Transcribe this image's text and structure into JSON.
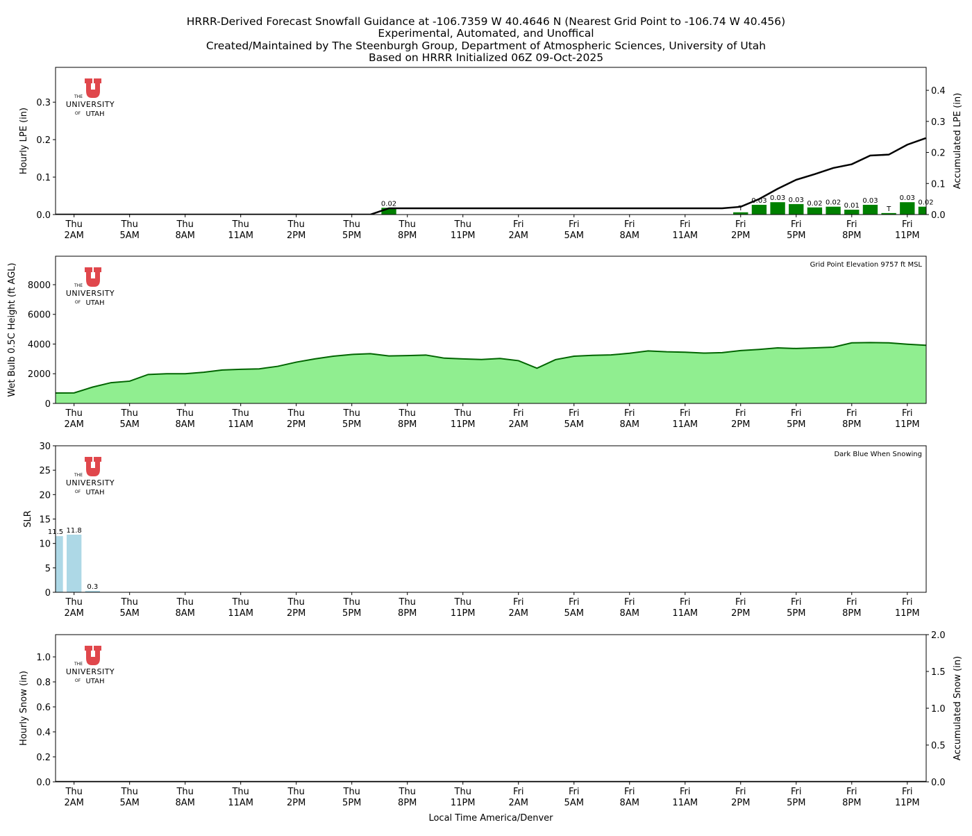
{
  "title_lines": [
    "HRRR-Derived Forecast Snowfall Guidance at -106.7359 W 40.4646 N (Nearest Grid Point to -106.74 W 40.456)",
    "Experimental, Automated, and Unoffical",
    "Created/Maintained by The Steenburgh Group, Department of Atmospheric Sciences, University of Utah",
    "Based on HRRR Initialized 06Z 09-Oct-2025"
  ],
  "logo": {
    "the": "THE",
    "university": "UNIVERSITY",
    "of": "OF",
    "utah": "UTAH"
  },
  "colors": {
    "lpe_bar": "#008000",
    "accum_line": "#000000",
    "wb_fill": "#90ee90",
    "wb_line": "#006400",
    "slr_bar": "#add8e6",
    "logo_red": "#e0474c"
  },
  "chart_data": [
    {
      "type": "bar",
      "name": "hourly-lpe",
      "x_unit": "hours after Thu 2AM local",
      "xlim": [
        -1,
        46
      ],
      "x_ticks": [
        0,
        3,
        6,
        9,
        12,
        15,
        18,
        21,
        24,
        27,
        30,
        33,
        36,
        39,
        42,
        45
      ],
      "x_tick_labels": [
        [
          "Thu",
          "2AM"
        ],
        [
          "Thu",
          "5AM"
        ],
        [
          "Thu",
          "8AM"
        ],
        [
          "Thu",
          "11AM"
        ],
        [
          "Thu",
          "2PM"
        ],
        [
          "Thu",
          "5PM"
        ],
        [
          "Thu",
          "8PM"
        ],
        [
          "Thu",
          "11PM"
        ],
        [
          "Fri",
          "2AM"
        ],
        [
          "Fri",
          "5AM"
        ],
        [
          "Fri",
          "8AM"
        ],
        [
          "Fri",
          "11AM"
        ],
        [
          "Fri",
          "2PM"
        ],
        [
          "Fri",
          "5PM"
        ],
        [
          "Fri",
          "8PM"
        ],
        [
          "Fri",
          "11PM"
        ]
      ],
      "ylabel": "Hourly LPE (in)",
      "ylim": [
        0,
        0.393
      ],
      "y_ticks": [
        0,
        0.1,
        0.2,
        0.3
      ],
      "y_tick_labels": [
        "0.0",
        "0.1",
        "0.2",
        "0.3"
      ],
      "bars": {
        "x": [
          17,
          36,
          37,
          38,
          39,
          40,
          41,
          42,
          43,
          44,
          45,
          46
        ],
        "values": [
          0.018,
          0.006,
          0.026,
          0.033,
          0.028,
          0.019,
          0.021,
          0.013,
          0.026,
          0.004,
          0.033,
          0.021
        ],
        "labels": [
          "0.02",
          "T",
          "0.03",
          "0.03",
          "0.03",
          "0.02",
          "0.02",
          "0.01",
          "0.03",
          "T",
          "0.03",
          "0.02"
        ]
      },
      "secondary": {
        "type": "line",
        "ylabel": "Accumulated LPE (in)",
        "ylim": [
          0,
          0.474
        ],
        "y_ticks": [
          0,
          0.1,
          0.2,
          0.3,
          0.4
        ],
        "y_tick_labels": [
          "0.0",
          "0.1",
          "0.2",
          "0.3",
          "0.4"
        ],
        "x": [
          -1,
          0,
          1,
          2,
          3,
          4,
          5,
          6,
          7,
          8,
          9,
          10,
          11,
          12,
          13,
          14,
          15,
          16,
          17,
          18,
          19,
          20,
          21,
          22,
          23,
          24,
          25,
          26,
          27,
          28,
          29,
          30,
          31,
          32,
          33,
          34,
          35,
          36,
          37,
          38,
          39,
          40,
          41,
          42,
          43,
          44,
          45,
          46
        ],
        "values": [
          0,
          0,
          0,
          0,
          0,
          0,
          0,
          0,
          0,
          0,
          0,
          0,
          0,
          0,
          0,
          0,
          0,
          0,
          0.02,
          0.02,
          0.02,
          0.02,
          0.02,
          0.02,
          0.02,
          0.02,
          0.02,
          0.02,
          0.02,
          0.02,
          0.02,
          0.02,
          0.02,
          0.02,
          0.02,
          0.02,
          0.02,
          0.025,
          0.05,
          0.083,
          0.112,
          0.13,
          0.15,
          0.162,
          0.19,
          0.193,
          0.225,
          0.246
        ]
      }
    },
    {
      "type": "area",
      "name": "wet-bulb-height",
      "xlim": [
        -1,
        46
      ],
      "ylabel": "Wet Bulb 0.5C Height (ft AGL)",
      "ylim": [
        0,
        9918
      ],
      "y_ticks": [
        0,
        2000,
        4000,
        6000,
        8000
      ],
      "y_tick_labels": [
        "0",
        "2000",
        "4000",
        "6000",
        "8000"
      ],
      "annotation": "Grid Point Elevation 9757 ft MSL",
      "x": [
        -1,
        0,
        1,
        2,
        3,
        4,
        5,
        6,
        7,
        8,
        9,
        10,
        11,
        12,
        13,
        14,
        15,
        16,
        17,
        18,
        19,
        20,
        21,
        22,
        23,
        24,
        25,
        26,
        27,
        28,
        29,
        30,
        31,
        32,
        33,
        34,
        35,
        36,
        37,
        38,
        39,
        40,
        41,
        42,
        43,
        44,
        45,
        46
      ],
      "values": [
        700,
        710,
        1100,
        1400,
        1500,
        1950,
        2000,
        2000,
        2100,
        2250,
        2300,
        2330,
        2500,
        2780,
        3000,
        3180,
        3300,
        3350,
        3200,
        3220,
        3260,
        3050,
        3000,
        2960,
        3030,
        2880,
        2370,
        2950,
        3180,
        3240,
        3270,
        3380,
        3540,
        3480,
        3450,
        3390,
        3420,
        3560,
        3640,
        3740,
        3700,
        3740,
        3790,
        4080,
        4100,
        4080,
        3990,
        3920
      ]
    },
    {
      "type": "bar",
      "name": "slr",
      "xlim": [
        -1,
        46
      ],
      "ylabel": "SLR",
      "ylim": [
        0,
        30
      ],
      "y_ticks": [
        0,
        5,
        10,
        15,
        20,
        25,
        30
      ],
      "y_tick_labels": [
        "0",
        "5",
        "10",
        "15",
        "20",
        "25",
        "30"
      ],
      "annotation": "Dark Blue When Snowing",
      "bars": {
        "x": [
          -1,
          0,
          1
        ],
        "values": [
          11.5,
          11.8,
          0.3
        ],
        "labels": [
          "11.5",
          "11.8",
          "0.3"
        ]
      }
    },
    {
      "type": "bar",
      "name": "hourly-snow",
      "xlim": [
        -1,
        46
      ],
      "ylabel": "Hourly Snow (in)",
      "ylim": [
        0,
        1.178
      ],
      "y_ticks": [
        0,
        0.2,
        0.4,
        0.6,
        0.8,
        1.0
      ],
      "y_tick_labels": [
        "0.0",
        "0.2",
        "0.4",
        "0.6",
        "0.8",
        "1.0"
      ],
      "bars": {
        "x": [],
        "values": [],
        "labels": []
      },
      "secondary": {
        "type": "line",
        "ylabel": "Accumulated Snow (in)",
        "ylim": [
          0,
          2
        ],
        "y_ticks": [
          0,
          0.5,
          1,
          1.5,
          2
        ],
        "y_tick_labels": [
          "0.0",
          "0.5",
          "1.0",
          "1.5",
          "2.0"
        ],
        "x": [
          -1,
          46
        ],
        "values": [
          0,
          0
        ]
      },
      "xlabel": "Local Time America/Denver"
    }
  ]
}
